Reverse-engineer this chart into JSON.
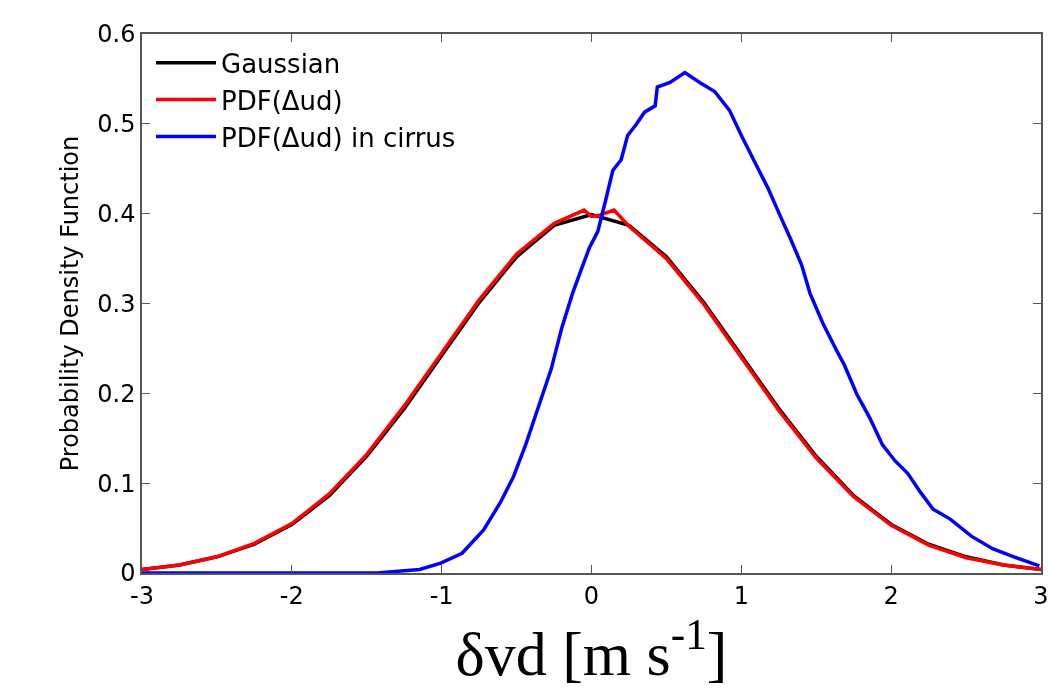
{
  "chart_data": {
    "type": "line",
    "xlabel": "δvd [m s$^{-1}$]",
    "ylabel": "Probability Density Function",
    "xlim": [
      -3,
      3
    ],
    "xticks": [
      -3,
      -2,
      -1,
      0,
      1,
      2,
      3
    ],
    "ylim": [
      0,
      0.6
    ],
    "yticks": [
      0,
      0.1,
      0.2,
      0.3,
      0.4,
      0.5,
      0.6
    ],
    "grid": false,
    "legend": "top left",
    "marker": "none",
    "line_style": "solid",
    "series": [
      {
        "name": "Gaussian",
        "color": "#000000",
        "x": [
          -3,
          -2.75,
          -2.5,
          -2.25,
          -2,
          -1.75,
          -1.5,
          -1.25,
          -1,
          -0.75,
          -0.5,
          -0.25,
          0,
          0.25,
          0.5,
          0.75,
          1,
          1.25,
          1.5,
          1.75,
          2,
          2.25,
          2.5,
          2.75,
          3
        ],
        "values": [
          0.004,
          0.009,
          0.018,
          0.032,
          0.054,
          0.086,
          0.13,
          0.183,
          0.242,
          0.301,
          0.352,
          0.387,
          0.399,
          0.387,
          0.352,
          0.301,
          0.242,
          0.183,
          0.13,
          0.086,
          0.054,
          0.032,
          0.018,
          0.009,
          0.004
        ]
      },
      {
        "name": "PDF(Δud)",
        "color": "#ff0000",
        "x": [
          -3,
          -2.75,
          -2.5,
          -2.25,
          -2,
          -1.75,
          -1.5,
          -1.25,
          -1,
          -0.75,
          -0.5,
          -0.25,
          -0.05,
          0,
          0.05,
          0.15,
          0.25,
          0.5,
          0.75,
          1,
          1.25,
          1.5,
          1.75,
          2,
          2.25,
          2.5,
          2.75,
          3
        ],
        "values": [
          0.004,
          0.009,
          0.018,
          0.033,
          0.055,
          0.088,
          0.132,
          0.186,
          0.245,
          0.304,
          0.355,
          0.389,
          0.404,
          0.397,
          0.398,
          0.404,
          0.386,
          0.35,
          0.299,
          0.24,
          0.181,
          0.128,
          0.085,
          0.053,
          0.031,
          0.017,
          0.009,
          0.004
        ]
      },
      {
        "name": "PDF(Δud) in cirrus",
        "color": "#0000ff",
        "x": [
          -3,
          -2,
          -1.43,
          -1.147,
          -1.006,
          -0.864,
          -0.72,
          -0.61,
          -0.524,
          -0.439,
          -0.354,
          -0.269,
          -0.198,
          -0.127,
          -0.057,
          -0.014,
          0.042,
          0.099,
          0.142,
          0.198,
          0.241,
          0.297,
          0.354,
          0.425,
          0.439,
          0.524,
          0.623,
          0.722,
          0.822,
          0.921,
          1.006,
          1.091,
          1.176,
          1.261,
          1.331,
          1.402,
          1.459,
          1.544,
          1.629,
          1.686,
          1.771,
          1.856,
          1.941,
          2.025,
          2.11,
          2.195,
          2.28,
          2.394,
          2.535,
          2.677,
          2.819,
          2.989
        ],
        "values": [
          0,
          0,
          0,
          0.004,
          0.011,
          0.022,
          0.048,
          0.078,
          0.106,
          0.143,
          0.185,
          0.227,
          0.273,
          0.311,
          0.343,
          0.362,
          0.38,
          0.418,
          0.448,
          0.46,
          0.487,
          0.499,
          0.513,
          0.52,
          0.541,
          0.546,
          0.557,
          0.546,
          0.536,
          0.515,
          0.485,
          0.457,
          0.429,
          0.397,
          0.371,
          0.343,
          0.311,
          0.278,
          0.25,
          0.232,
          0.199,
          0.173,
          0.143,
          0.125,
          0.111,
          0.09,
          0.071,
          0.06,
          0.041,
          0.027,
          0.018,
          0.008
        ]
      }
    ]
  }
}
